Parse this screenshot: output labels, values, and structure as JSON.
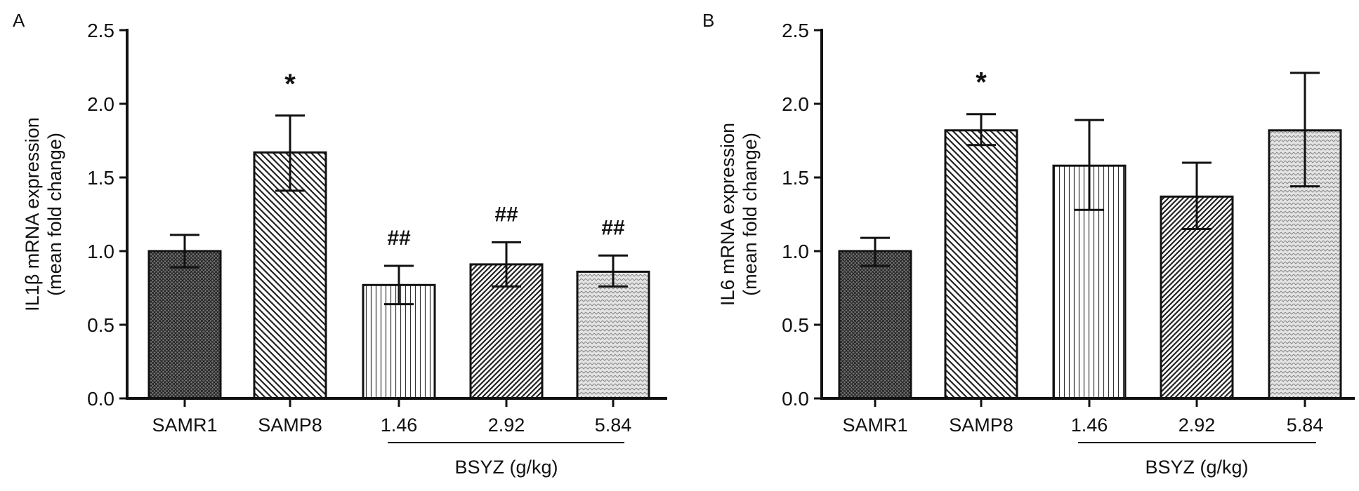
{
  "chart_data": [
    {
      "type": "bar",
      "panel_label": "A",
      "ylabel_line1": "IL1β mRNA expression",
      "ylabel_line2": "(mean fold change)",
      "ylim": [
        0,
        2.5
      ],
      "yticks": [
        "0.0",
        "0.5",
        "1.0",
        "1.5",
        "2.0",
        "2.5"
      ],
      "categories": [
        "SAMR1",
        "SAMP8",
        "1.46",
        "2.92",
        "5.84"
      ],
      "values": [
        1.0,
        1.67,
        0.77,
        0.91,
        0.86
      ],
      "error_upper": [
        1.11,
        1.92,
        0.9,
        1.06,
        0.97
      ],
      "error_lower": [
        0.89,
        1.41,
        0.64,
        0.76,
        0.76
      ],
      "annotations": [
        "",
        "*",
        "##",
        "##",
        "##"
      ],
      "group_label": "BSYZ (g/kg)",
      "grid": false
    },
    {
      "type": "bar",
      "panel_label": "B",
      "ylabel_line1": "IL6 mRNA expression",
      "ylabel_line2": "(mean fold change)",
      "ylim": [
        0,
        2.5
      ],
      "yticks": [
        "0.0",
        "0.5",
        "1.0",
        "1.5",
        "2.0",
        "2.5"
      ],
      "categories": [
        "SAMR1",
        "SAMP8",
        "1.46",
        "2.92",
        "5.84"
      ],
      "values": [
        1.0,
        1.82,
        1.58,
        1.37,
        1.82
      ],
      "error_upper": [
        1.09,
        1.93,
        1.89,
        1.6,
        2.21
      ],
      "error_lower": [
        0.9,
        1.72,
        1.28,
        1.15,
        1.44
      ],
      "annotations": [
        "",
        "*",
        "",
        "",
        ""
      ],
      "group_label": "BSYZ (g/kg)",
      "grid": false
    }
  ]
}
